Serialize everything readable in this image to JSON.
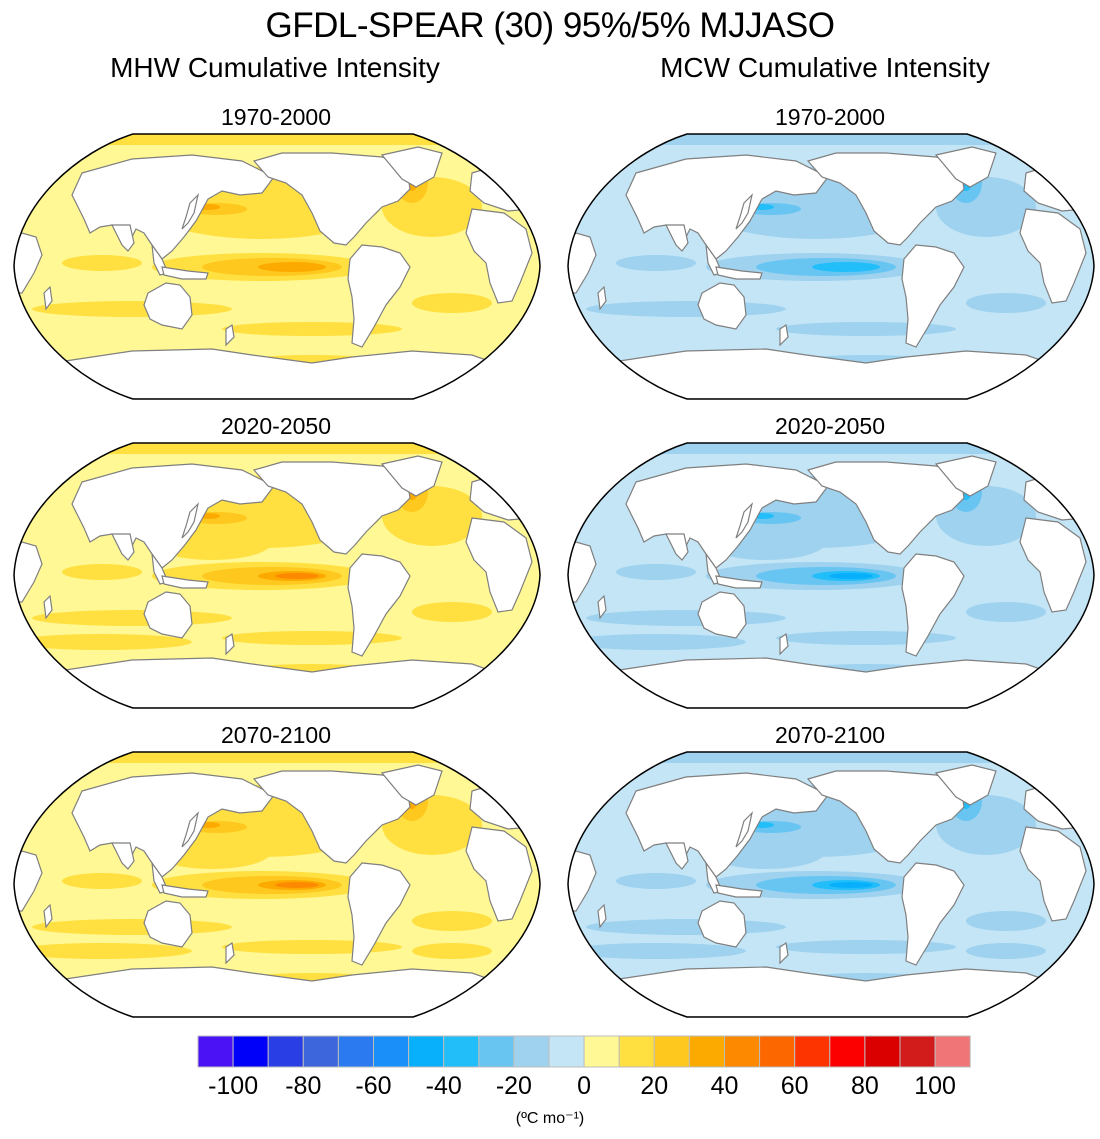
{
  "chart_data": {
    "type": "heatmap",
    "title": "GFDL-SPEAR (30) 95%/5% MJJASO",
    "projection": "Robinson (Pacific-centered)",
    "columns": [
      {
        "title": "MHW Cumulative Intensity",
        "sign": "positive",
        "panels": [
          {
            "title": "1970-2000",
            "range_estimate": [
              0,
              50
            ],
            "max_region": "Equatorial central-eastern Pacific, Kuroshio extension, Gulf Stream/North Atlantic"
          },
          {
            "title": "2020-2050",
            "range_estimate": [
              0,
              60
            ],
            "max_region": "Equatorial central-eastern Pacific, Kuroshio extension, North Atlantic"
          },
          {
            "title": "2070-2100",
            "range_estimate": [
              0,
              60
            ],
            "max_region": "Equatorial central-eastern Pacific, Kuroshio extension"
          }
        ]
      },
      {
        "title": "MCW Cumulative Intensity",
        "sign": "negative",
        "panels": [
          {
            "title": "1970-2000",
            "range_estimate": [
              -40,
              0
            ],
            "max_region": "Equatorial central-eastern Pacific, Kuroshio extension, Labrador Sea"
          },
          {
            "title": "2020-2050",
            "range_estimate": [
              -40,
              0
            ],
            "max_region": "Equatorial central-eastern Pacific, Labrador Sea"
          },
          {
            "title": "2070-2100",
            "range_estimate": [
              -40,
              0
            ],
            "max_region": "Equatorial central-eastern Pacific"
          }
        ]
      }
    ],
    "colorbar": {
      "levels": [
        -100,
        -90,
        -80,
        -70,
        -60,
        -50,
        -40,
        -30,
        -20,
        -10,
        0,
        10,
        20,
        30,
        40,
        50,
        60,
        70,
        80,
        90,
        100
      ],
      "tick_labels": [
        "-100",
        "-80",
        "-60",
        "-40",
        "-20",
        "0",
        "20",
        "40",
        "60",
        "80",
        "100"
      ],
      "colors": [
        "#4a12f5",
        "#0000fa",
        "#2a3ee6",
        "#3d66dc",
        "#2b7af0",
        "#1a8ffa",
        "#08b0fc",
        "#22befa",
        "#68c5f2",
        "#9ed2ef",
        "#c4e5f6",
        "#fff894",
        "#ffe040",
        "#fec81e",
        "#fdaa00",
        "#fd8900",
        "#fd6700",
        "#fd3300",
        "#fc0000",
        "#da0000",
        "#d21c1c",
        "#ef7576"
      ],
      "units": "(ºC mo⁻¹)"
    }
  },
  "text": {
    "main_title": "GFDL-SPEAR (30) 95%/5% MJJASO",
    "left_col_title": "MHW Cumulative Intensity",
    "right_col_title": "MCW Cumulative Intensity",
    "p1": "1970-2000",
    "p2": "2020-2050",
    "p3": "2070-2100",
    "p4": "1970-2000",
    "p5": "2020-2050",
    "p6": "2070-2100"
  },
  "palettes": {
    "mhw": {
      "land": "#ffffff",
      "base": "#fff894",
      "l1": "#ffe040",
      "l2": "#fec81e",
      "l3": "#fdaa00",
      "l4": "#fd8900"
    },
    "mcw": {
      "land": "#ffffff",
      "base": "#c4e5f6",
      "l1": "#9ed2ef",
      "l2": "#68c5f2",
      "l3": "#22befa",
      "l4": "#08b0fc"
    },
    "coast": "#7f7f7f",
    "border": "#000000"
  }
}
